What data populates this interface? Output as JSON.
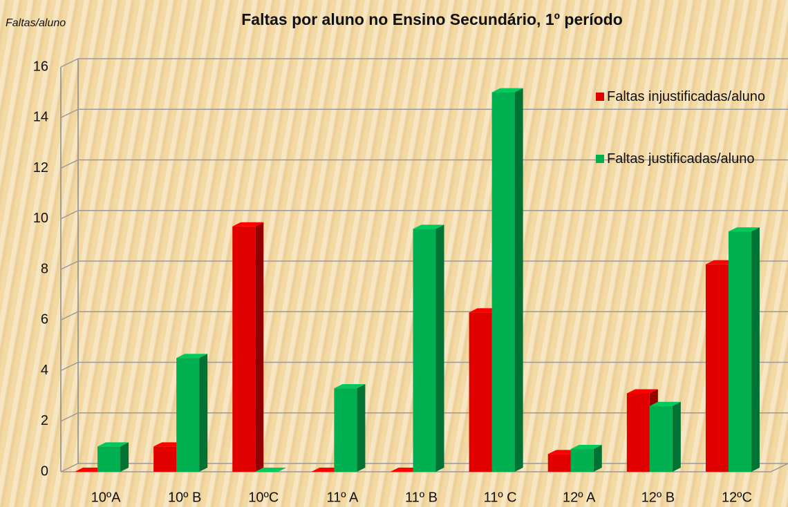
{
  "chart_data": {
    "type": "bar3d",
    "title": "Faltas por aluno no Ensino Secundário, 1º período",
    "y_label": "Faltas/aluno",
    "categories": [
      "10ºA",
      "10º B",
      "10ºC",
      "11º A",
      "11º B",
      "11º C",
      "12º A",
      "12º B",
      "12ºC"
    ],
    "series": [
      {
        "name": "Faltas injustificadas/aluno",
        "color": "#e00000",
        "values": [
          0,
          1,
          9.7,
          0,
          0,
          6.3,
          0.7,
          3.1,
          8.2
        ]
      },
      {
        "name": "Faltas justificadas/aluno",
        "color": "#00b050",
        "values": [
          1,
          4.5,
          0,
          3.3,
          9.6,
          15,
          0.9,
          2.6,
          9.5
        ]
      }
    ],
    "ylim": [
      0,
      16
    ],
    "yticks": [
      0,
      2,
      4,
      6,
      8,
      10,
      12,
      14,
      16
    ],
    "grid": true,
    "legend": "top-right"
  }
}
